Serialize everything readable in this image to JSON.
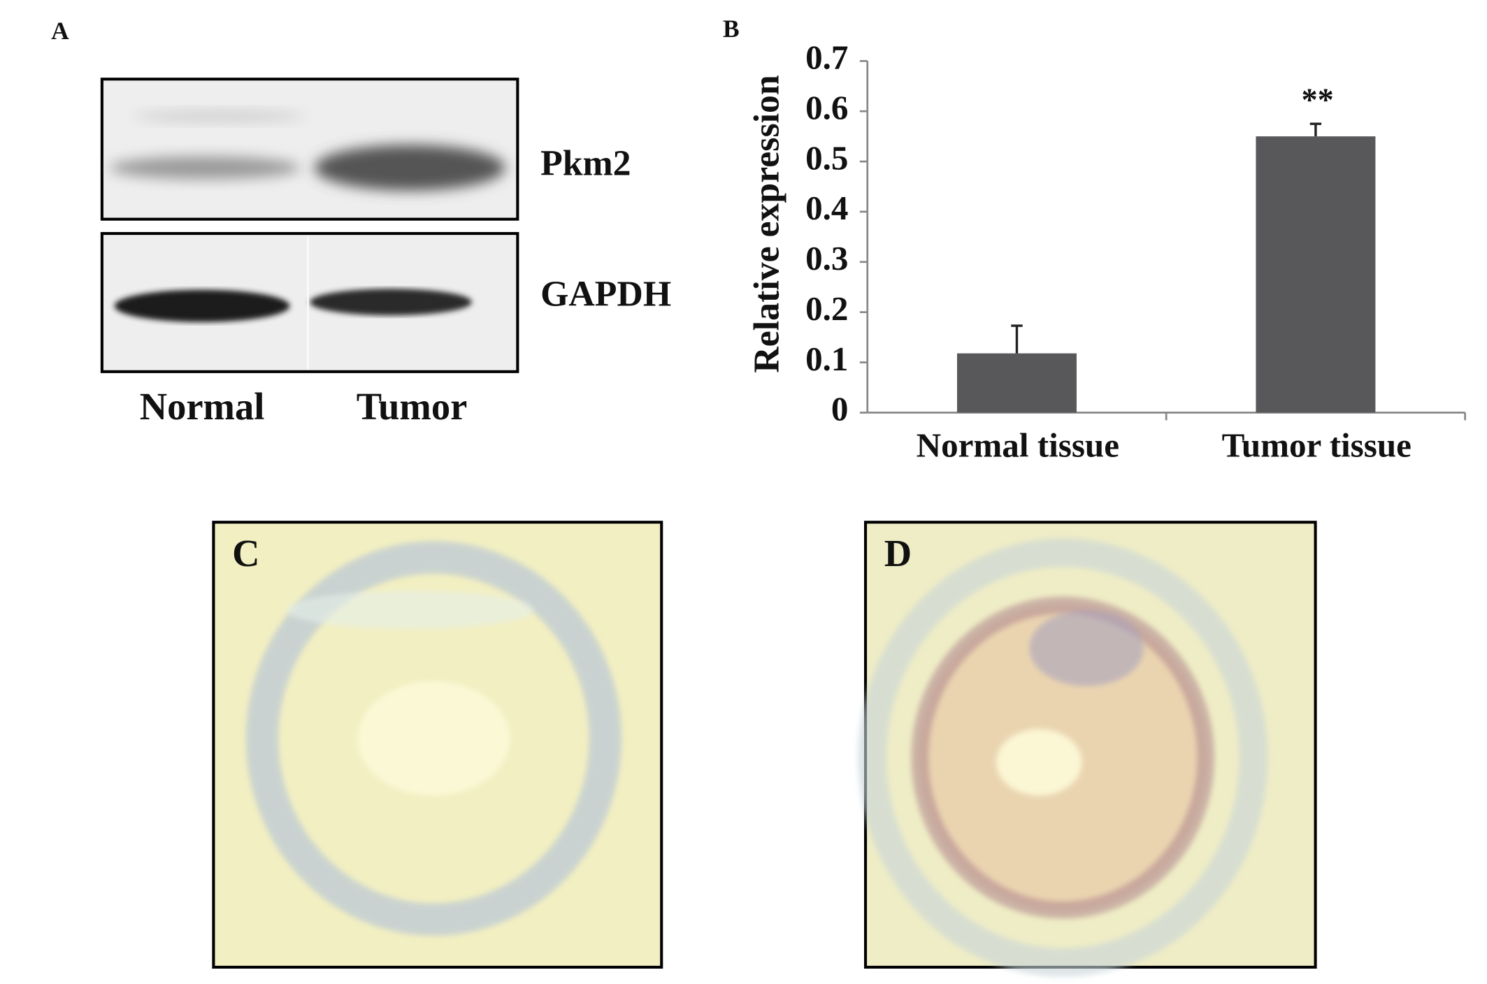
{
  "panels": {
    "a": {
      "label": "A",
      "bands": [
        "Pkm2",
        "GAPDH"
      ],
      "lanes": [
        "Normal",
        "Tumor"
      ]
    },
    "c": {
      "label": "C"
    },
    "d": {
      "label": "D"
    }
  },
  "chart_data": {
    "type": "bar",
    "panel_label": "B",
    "y_label": "Relative expression",
    "categories": [
      "Normal tissue",
      "Tumor tissue"
    ],
    "values": [
      0.118,
      0.55
    ],
    "errors": [
      0.055,
      0.025
    ],
    "annotations": [
      null,
      "**"
    ],
    "color": "#58585b",
    "ylim": [
      0,
      0.7
    ],
    "yticks": [
      0,
      0.1,
      0.2,
      0.3,
      0.4,
      0.5,
      0.6,
      0.7
    ]
  }
}
